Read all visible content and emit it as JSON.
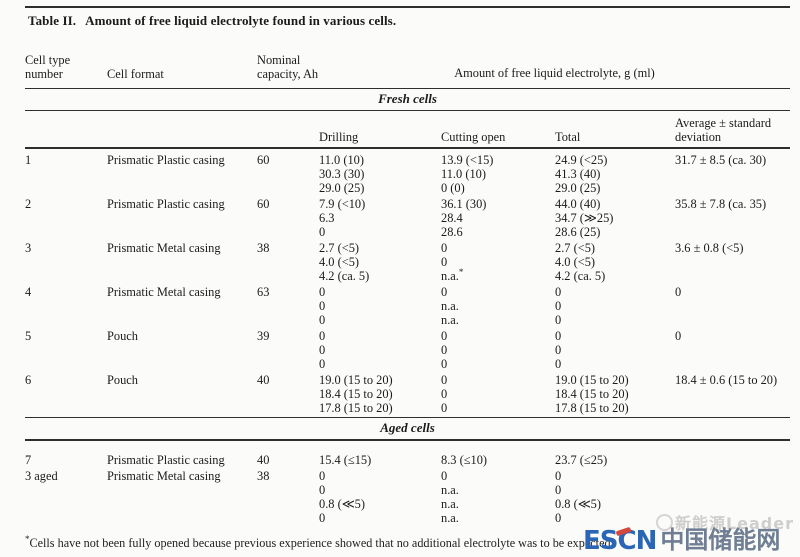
{
  "page": {
    "background": "#fbfbfa",
    "text_color": "#1b1b1b",
    "rule_color": "#2e2e2e"
  },
  "table": {
    "title_label": "Table II.",
    "title_text": "Amount of free liquid electrolyte found in various cells.",
    "header": {
      "cell_type": "Cell type number",
      "cell_format": "Cell format",
      "capacity": "Nominal capacity, Ah",
      "electrolyte_group": "Amount of free liquid electrolyte, g (ml)"
    },
    "subheader": {
      "drilling": "Drilling",
      "cutting": "Cutting open",
      "total": "Total",
      "average": "Average ± standard deviation"
    },
    "sections": [
      {
        "label": "Fresh cells",
        "rows": [
          {
            "number": "1",
            "format": "Prismatic Plastic casing",
            "capacity": "60",
            "drilling": [
              "11.0 (10)",
              "30.3 (30)",
              "29.0 (25)"
            ],
            "cutting": [
              "13.9 (<15)",
              "11.0 (10)",
              "0 (0)"
            ],
            "total": [
              "24.9 (<25)",
              "41.3 (40)",
              "29.0 (25)"
            ],
            "average": [
              "31.7 ± 8.5 (ca. 30)"
            ]
          },
          {
            "number": "2",
            "format": "Prismatic Plastic casing",
            "capacity": "60",
            "drilling": [
              "7.9 (<10)",
              "6.3",
              "0"
            ],
            "cutting": [
              "36.1 (30)",
              "28.4",
              "28.6"
            ],
            "total": [
              "44.0 (40)",
              "34.7 (≫25)",
              "28.6 (25)"
            ],
            "average": [
              "35.8 ± 7.8 (ca. 35)"
            ]
          },
          {
            "number": "3",
            "format": "Prismatic Metal casing",
            "capacity": "38",
            "drilling": [
              "2.7 (<5)",
              "4.0 (<5)",
              "4.2 (ca. 5)"
            ],
            "cutting": [
              "0",
              "0",
              "n.a.*"
            ],
            "total": [
              "2.7 (<5)",
              "4.0 (<5)",
              "4.2 (ca. 5)"
            ],
            "average": [
              "3.6 ± 0.8 (<5)"
            ]
          },
          {
            "number": "4",
            "format": "Prismatic Metal casing",
            "capacity": "63",
            "drilling": [
              "0",
              "0",
              "0"
            ],
            "cutting": [
              "0",
              "n.a.",
              "n.a."
            ],
            "total": [
              "0",
              "0",
              "0"
            ],
            "average": [
              "0"
            ]
          },
          {
            "number": "5",
            "format": "Pouch",
            "capacity": "39",
            "drilling": [
              "0",
              "0",
              "0"
            ],
            "cutting": [
              "0",
              "0",
              "0"
            ],
            "total": [
              "0",
              "0",
              "0"
            ],
            "average": [
              "0"
            ]
          },
          {
            "number": "6",
            "format": "Pouch",
            "capacity": "40",
            "drilling": [
              "19.0 (15 to 20)",
              "18.4 (15 to 20)",
              "17.8 (15 to 20)"
            ],
            "cutting": [
              "0",
              "0",
              "0"
            ],
            "total": [
              "19.0 (15 to 20)",
              "18.4 (15 to 20)",
              "17.8 (15 to 20)"
            ],
            "average": [
              "18.4 ± 0.6 (15 to 20)"
            ]
          }
        ]
      },
      {
        "label": "Aged cells",
        "rows": [
          {
            "number": "7",
            "format": "Prismatic Plastic casing",
            "capacity": "40",
            "drilling": [
              "15.4 (≤15)"
            ],
            "cutting": [
              "8.3 (≤10)"
            ],
            "total": [
              "23.7 (≤25)"
            ],
            "average": []
          },
          {
            "number": "3 aged",
            "format": "Prismatic Metal casing",
            "capacity": "38",
            "drilling": [
              "0",
              "0",
              "0.8 (≪5)",
              "0"
            ],
            "cutting": [
              "0",
              "n.a.",
              "n.a.",
              "n.a."
            ],
            "total": [
              "0",
              "0",
              "0.8 (≪5)",
              "0"
            ],
            "average": []
          }
        ]
      }
    ],
    "footnote_marker": "*",
    "footnote": "Cells have not been fully opened because previous experience showed that no additional electrolyte was to be expected."
  },
  "watermark": {
    "faint_text": "新能源Leader",
    "logo_en": "ESCN",
    "logo_cn": "中国储能网",
    "colors": {
      "logo_blue": "#2a66b5",
      "logo_accent_red": "#d4483e",
      "logo_cn_blue": "#6f7e93",
      "faint_gray": "#bfbfbf"
    }
  }
}
